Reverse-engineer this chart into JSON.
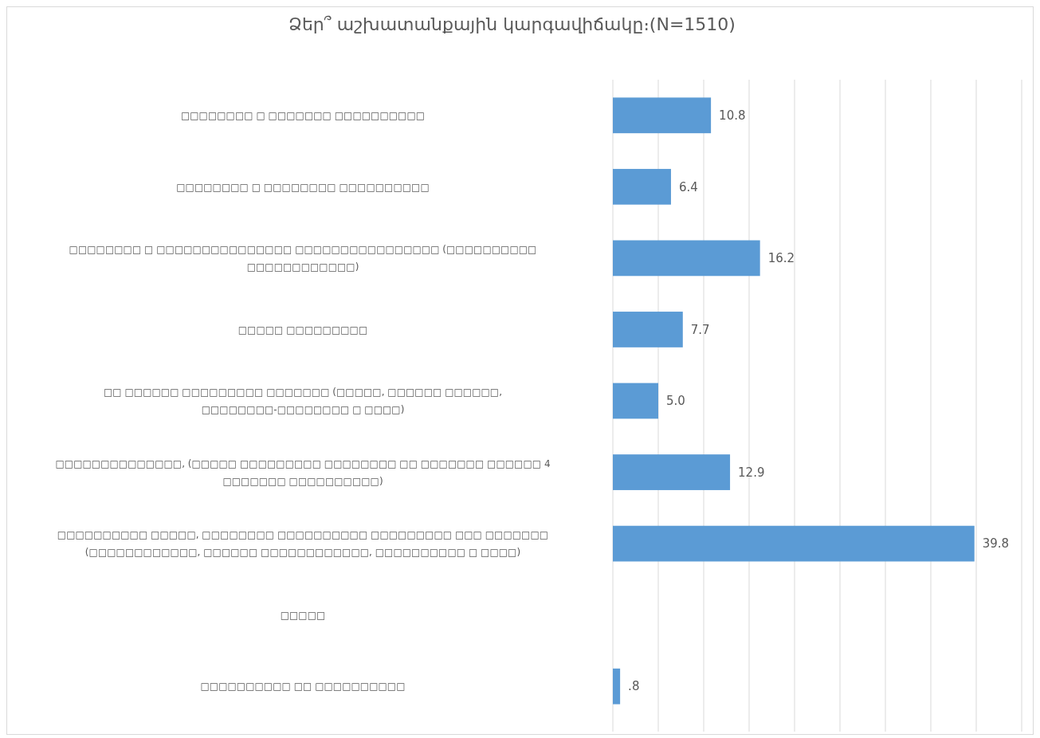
{
  "chart_data": {
    "type": "bar",
    "orientation": "horizontal",
    "title": "Ձեր՞ աշխատանքային կարգավիճակը։(N=1510)",
    "categories": [
      "□□□□□□□□  □ □□□□□□□ □□□□□□□□□□",
      "□□□□□□□□ □ □□□□□□□□ □□□□□□□□□□",
      "□□□□□□□□  □ □□□□□□□□□□□□□□□ □□□□□□□□□□□□□□□□ (□□□□□□□□□□ □□□□□□□□□□□□)",
      "□□□□□ □□□□□□□□□",
      "□□  □□□□□□ □□□□□□□□□ □□□□□□□ (□□□□□, □□□□□□ □□□□□□, □□□□□□□□-□□□□□□□□ □ □□□□)",
      "□□□□□□□□□□□□□□, (□□□□□ □□□□□□□□□ □□□□□□□□ □□ □□□□□□□ □□□□□□ 4 □□□□□□□ □□□□□□□□□□)",
      "□□□□□□□□□□ □□□□□, □□□□□□□□ □□□□□□□□□□ □□□□□□□□□ □□□ □□□□□□□ (□□□□□□□□□□□□, □□□□□□ □□□□□□□□□□□□, □□□□□□□□□□ □ □□□□)",
      "□□□□□",
      "□□□□□□□□□□ □□ □□□□□□□□□□"
    ],
    "values": [
      10.8,
      6.4,
      16.2,
      7.7,
      5.0,
      12.9,
      39.8,
      null,
      0.8
    ],
    "value_labels": [
      "10.8",
      "6.4",
      "16.2",
      "7.7",
      "5.0",
      "12.9",
      "39.8",
      null,
      ".8"
    ],
    "color": "#5b9bd5",
    "xlim": [
      0,
      45
    ],
    "xticks": [
      {
        "value": 0,
        "label": null
      },
      {
        "value": 5,
        "label": null
      },
      {
        "value": 10,
        "label": null
      },
      {
        "value": 15,
        "label": null
      },
      {
        "value": 20,
        "label": null
      },
      {
        "value": 25,
        "label": null
      },
      {
        "value": 30,
        "label": null
      },
      {
        "value": 35,
        "label": null
      },
      {
        "value": 40,
        "label": null
      },
      {
        "value": 45,
        "label": null
      }
    ],
    "grid": "x",
    "tick_labels": "y"
  }
}
